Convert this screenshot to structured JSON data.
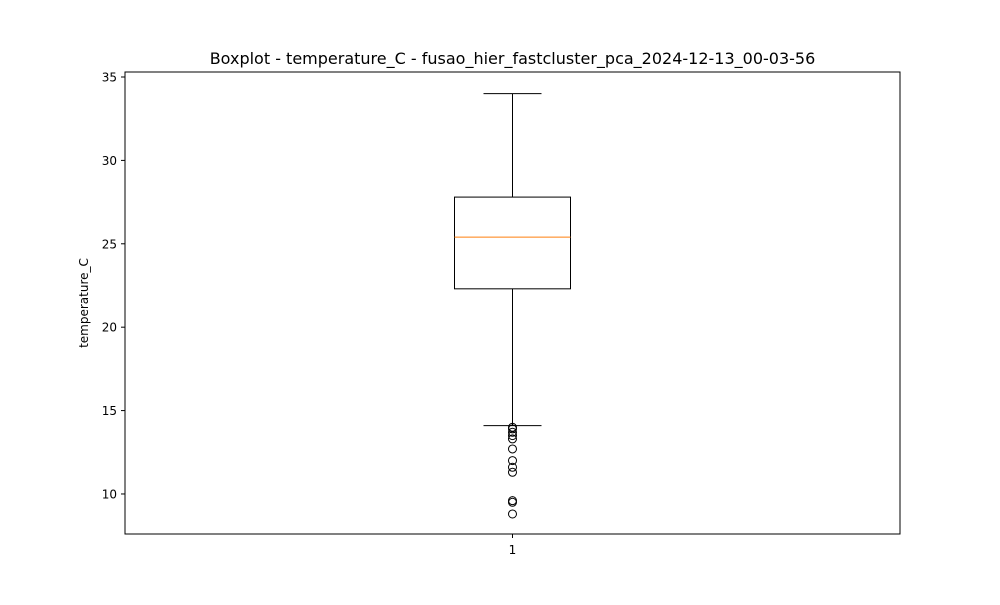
{
  "chart_data": {
    "type": "boxplot",
    "title": "Boxplot - temperature_C - fusao_hier_fastcluster_pca_2024-12-13_00-03-56",
    "xlabel": "",
    "ylabel": "temperature_C",
    "categories": [
      "1"
    ],
    "ylim": [
      7.6,
      35.3
    ],
    "yticks": [
      10,
      15,
      20,
      25,
      30,
      35
    ],
    "grid": false,
    "colors": {
      "box": "#000000",
      "median": "#ff7f0e",
      "axes": "#000000"
    },
    "boxes": [
      {
        "category": "1",
        "whisker_low": 14.1,
        "q1": 22.3,
        "median": 25.4,
        "q3": 27.8,
        "whisker_high": 34.0,
        "outliers": [
          14.0,
          13.9,
          13.7,
          13.5,
          13.3,
          12.7,
          12.0,
          11.6,
          11.3,
          9.6,
          9.5,
          8.8
        ]
      }
    ]
  }
}
